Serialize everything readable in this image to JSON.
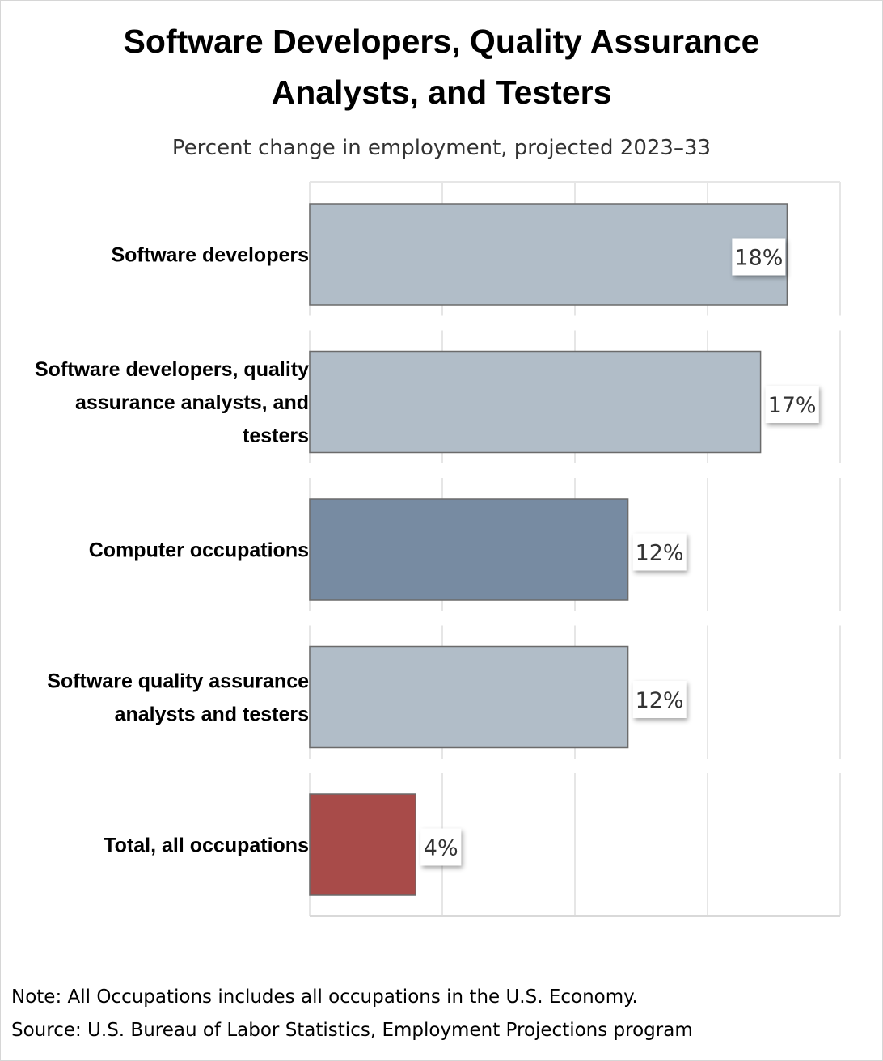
{
  "title_lines": [
    "Software Developers, Quality Assurance",
    "Analysts, and Testers"
  ],
  "subtitle": "Percent change in employment, projected 2023–33",
  "note": "Note: All Occupations includes all occupations in the U.S. Economy.",
  "source": "Source: U.S. Bureau of Labor Statistics, Employment Projections program",
  "colors": {
    "light_bar": "#b1bdc8",
    "dark_bar": "#778ba2",
    "total_bar": "#a84b49",
    "bar_border": "#6b6b6b",
    "grid": "#e6e6e6"
  },
  "chart_data": {
    "type": "bar",
    "orientation": "horizontal",
    "categories": [
      "Software developers",
      "Software developers, quality assurance analysts, and testers",
      "Computer occupations",
      "Software quality assurance analysts and testers",
      "Total, all occupations"
    ],
    "category_label_lines": [
      [
        "Software developers"
      ],
      [
        "Software developers, quality",
        "assurance analysts, and",
        "testers"
      ],
      [
        "Computer occupations"
      ],
      [
        "Software quality assurance",
        "analysts and testers"
      ],
      [
        "Total, all occupations"
      ]
    ],
    "values": [
      18,
      17,
      12,
      12,
      4
    ],
    "value_labels": [
      "18%",
      "17%",
      "12%",
      "12%",
      "4%"
    ],
    "bar_colors": [
      "#b1bdc8",
      "#b1bdc8",
      "#778ba2",
      "#b1bdc8",
      "#a84b49"
    ],
    "xlim": [
      0,
      20
    ],
    "grid": true,
    "legend": false
  }
}
